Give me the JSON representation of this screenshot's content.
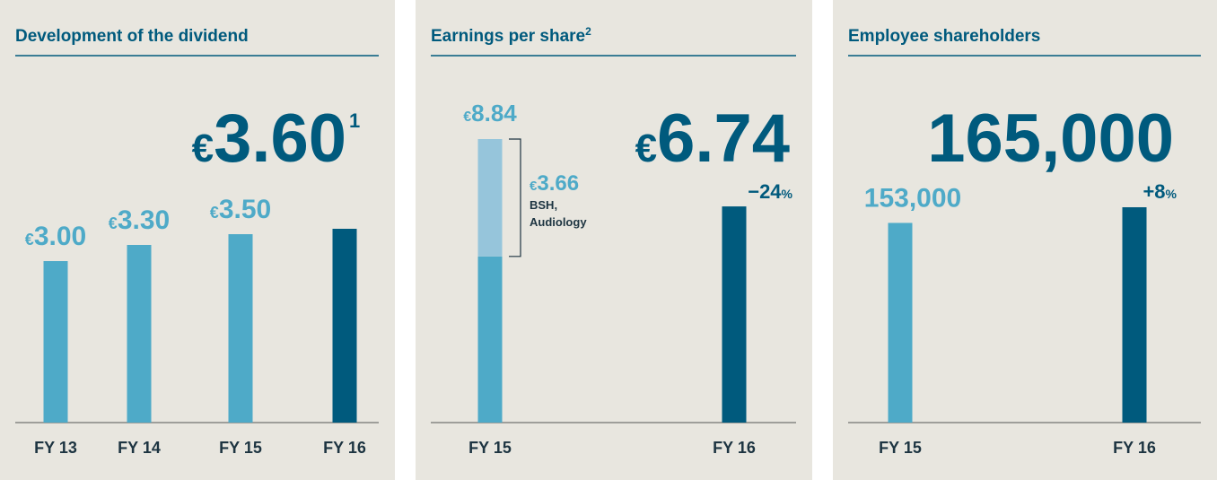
{
  "chart_data": [
    {
      "type": "bar",
      "title": "Development of the dividend",
      "currency": "€",
      "categories": [
        "FY 13",
        "FY 14",
        "FY 15",
        "FY 16"
      ],
      "values": [
        3.0,
        3.3,
        3.5,
        3.6
      ],
      "value_labels": [
        "3.00",
        "3.30",
        "3.50",
        "3.60"
      ],
      "footnote": "1",
      "colors": [
        "#4eaac8",
        "#4eaac8",
        "#4eaac8",
        "#005a7d"
      ]
    },
    {
      "type": "stacked_bar",
      "title": "Earnings per share",
      "title_footnote": "2",
      "currency": "€",
      "categories": [
        "FY 15",
        "FY 16"
      ],
      "series": [
        {
          "values": [
            5.18,
            6.74
          ],
          "value_labels": [
            null,
            "6.74"
          ],
          "colors": [
            "#4eaac8",
            "#005a7d"
          ]
        },
        {
          "name": "BSH, Audiology",
          "values": [
            3.66,
            null
          ],
          "value_labels": [
            "3.66",
            null
          ],
          "color": "#96c5db"
        }
      ],
      "total_labels": [
        "8.84",
        null
      ],
      "change": "−24",
      "change_unit": "%"
    },
    {
      "type": "bar",
      "title": "Employee shareholders",
      "categories": [
        "FY 15",
        "FY 16"
      ],
      "values": [
        153000,
        165000
      ],
      "value_labels": [
        "153,000",
        "165,000"
      ],
      "colors": [
        "#4eaac8",
        "#005a7d"
      ],
      "change": "+8",
      "change_unit": "%"
    }
  ]
}
